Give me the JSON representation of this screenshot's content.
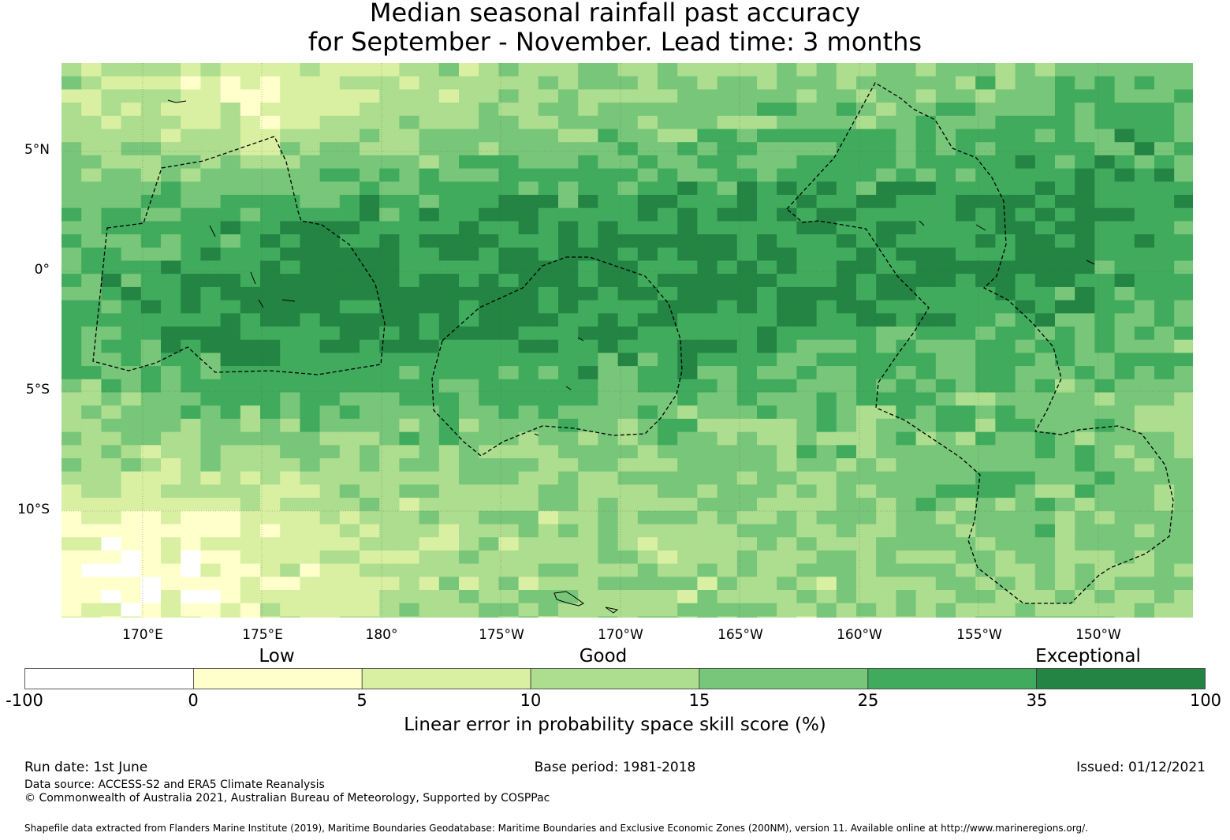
{
  "title": {
    "line1": "Median seasonal rainfall past accuracy",
    "line2": "for September - November. Lead time: 3 months"
  },
  "map": {
    "lat_labels": [
      "5°N",
      "0°",
      "5°S",
      "10°S"
    ],
    "lon_labels": [
      "170°E",
      "175°E",
      "180°",
      "175°W",
      "170°W",
      "165°W",
      "160°W",
      "155°W",
      "150°W"
    ],
    "colors": [
      "#ffffff",
      "#ffffcc",
      "#d9f0a3",
      "#addd8e",
      "#78c679",
      "#41ab5d",
      "#238443"
    ]
  },
  "colorbar": {
    "categories": [
      "Low",
      "Good",
      "Exceptional"
    ],
    "ticks": [
      "-100",
      "0",
      "5",
      "10",
      "15",
      "25",
      "35",
      "100"
    ],
    "label": "Linear error in probability space skill score (%)"
  },
  "footer": {
    "run_date": "Run date: 1st June",
    "base_period": "Base period: 1981-2018",
    "issued": "Issued: 01/12/2021",
    "data_source": "Data source: ACCESS-S2 and ERA5 Climate Reanalysis",
    "copyright": "© Commonwealth of Australia 2021, Australian Bureau of Meteorology, Supported by COSPPac",
    "shapefile": "Shapefile data extracted from Flanders Marine Institute (2019), Maritime Boundaries Geodatabase: Maritime Boundaries and Exclusive Economic Zones (200NM), version 11. Available online at http://www.marineregions.org/."
  }
}
